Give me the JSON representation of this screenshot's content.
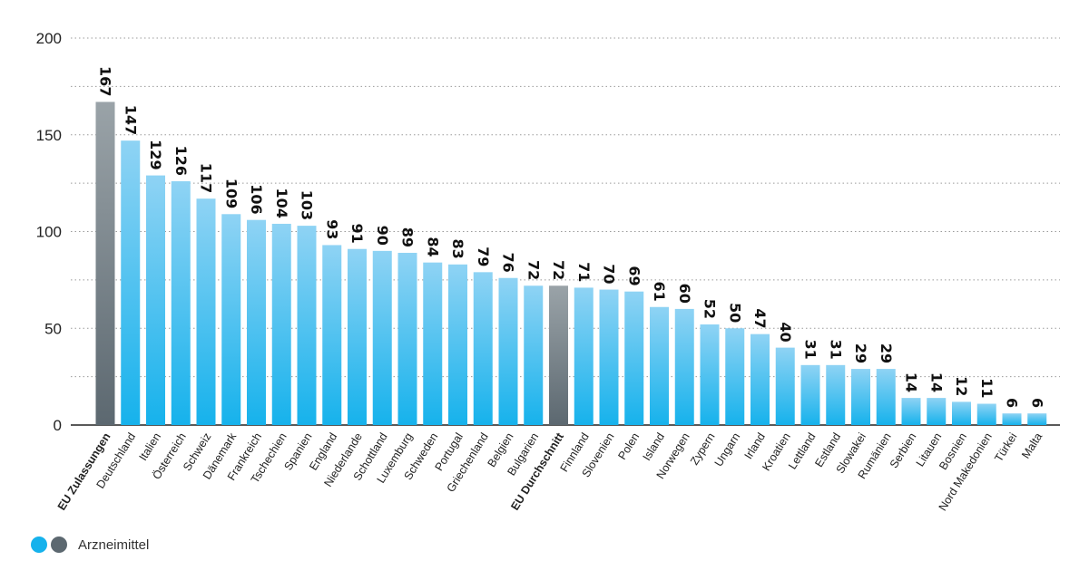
{
  "colors": {
    "bar_top": "#8fd3f4",
    "bar_bottom": "#16b2ec",
    "highlight_top": "#9aa3a8",
    "highlight_bottom": "#5c6870",
    "grid": "#9a9a9a",
    "axis": "#222222"
  },
  "legend": {
    "label": "Arzneimittel",
    "dots": [
      "#16b2ec",
      "#5c6870"
    ]
  },
  "chart_data": {
    "type": "bar",
    "title": "",
    "xlabel": "",
    "ylabel": "",
    "ylim": [
      0,
      200
    ],
    "yticks": [
      0,
      50,
      100,
      150,
      200
    ],
    "grid": "dotted horizontal",
    "legend_position": "bottom-left",
    "categories": [
      "EU Zulassungen",
      "Deutschland",
      "Italien",
      "Österreich",
      "Schweiz",
      "Dänemark",
      "Frankreich",
      "Tschechien",
      "Spanien",
      "England",
      "Niederlande",
      "Schottland",
      "Luxemburg",
      "Schweden",
      "Portugal",
      "Griechenland",
      "Belgien",
      "Bulgarien",
      "EU Durchschnitt",
      "Finnland",
      "Slovenien",
      "Polen",
      "Island",
      "Norwegen",
      "Zypern",
      "Ungarn",
      "Irland",
      "Kroatien",
      "Lettland",
      "Estland",
      "Slowakei",
      "Rumänien",
      "Serbien",
      "Litauen",
      "Bosnien",
      "Nord Makedonien",
      "Türkei",
      "Malta"
    ],
    "values": [
      167,
      147,
      129,
      126,
      117,
      109,
      106,
      104,
      103,
      93,
      91,
      90,
      89,
      84,
      83,
      79,
      76,
      72,
      72,
      71,
      70,
      69,
      61,
      60,
      52,
      50,
      47,
      40,
      31,
      31,
      29,
      29,
      14,
      14,
      12,
      11,
      6,
      6
    ],
    "highlighted": [
      "EU Zulassungen",
      "EU Durchschnitt"
    ],
    "series": [
      {
        "name": "Arzneimittel"
      }
    ]
  }
}
